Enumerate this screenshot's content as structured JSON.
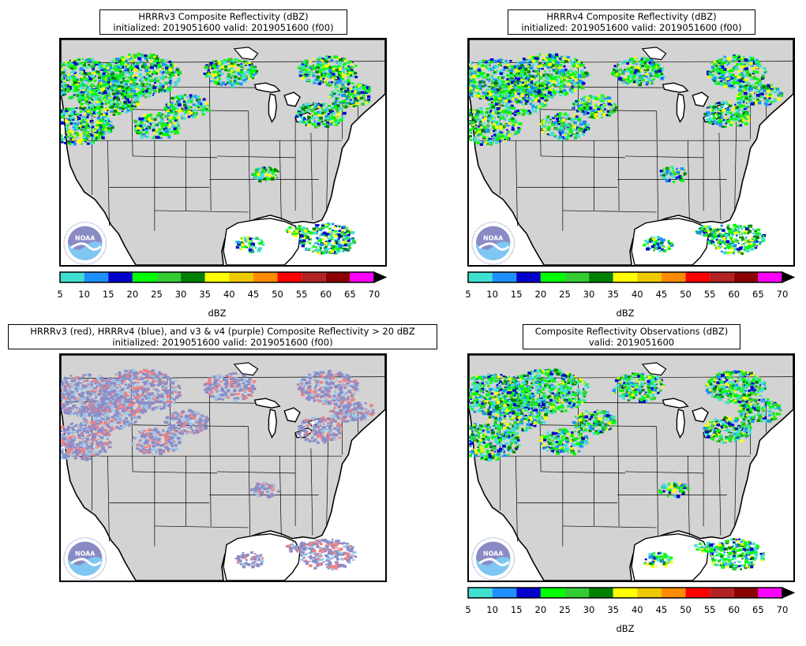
{
  "panels": [
    {
      "id": "hrrrv3",
      "title_line1": "HRRRv3 Composite Reflectivity (dBZ)",
      "title_line2": "initialized: 2019051600 valid: 2019051600 (f00)",
      "has_colorbar": true,
      "seed": 11
    },
    {
      "id": "hrrrv4",
      "title_line1": "HRRRv4 Composite Reflectivity (dBZ)",
      "title_line2": "initialized: 2019051600 valid: 2019051600 (f00)",
      "has_colorbar": true,
      "seed": 29
    },
    {
      "id": "overlap",
      "title_line1": "HRRRv3 (red), HRRRv4 (blue), and v3 & v4 (purple) Composite Reflectivity > 20 dBZ",
      "title_line2": "initialized: 2019051600 valid: 2019051600 (f00)",
      "has_colorbar": false,
      "seed": 47
    },
    {
      "id": "observations",
      "title_line1": "Composite Reflectivity Observations (dBZ)",
      "title_line2": "valid: 2019051600",
      "has_colorbar": true,
      "seed": 83
    }
  ],
  "colorbar": {
    "label": "dBZ",
    "ticks": [
      "5",
      "10",
      "15",
      "20",
      "25",
      "30",
      "35",
      "40",
      "45",
      "50",
      "55",
      "60",
      "65",
      "70"
    ],
    "colors": [
      "#40e0d0",
      "#1e90ff",
      "#0000cd",
      "#00ff00",
      "#32cd32",
      "#008000",
      "#ffff00",
      "#eec900",
      "#ff8c00",
      "#ff0000",
      "#b22222",
      "#8b0000",
      "#ff00ff"
    ],
    "extend_color": "#000000"
  },
  "overlap_colors": {
    "v3": "#f08080",
    "v4": "#9bc6e8",
    "both": "#8c8cc8"
  },
  "map_colors": {
    "land": "#d3d3d3",
    "water": "#ffffff",
    "border": "#000000"
  },
  "logo": {
    "text": "NOAA",
    "icon": "noaa-logo-icon"
  }
}
